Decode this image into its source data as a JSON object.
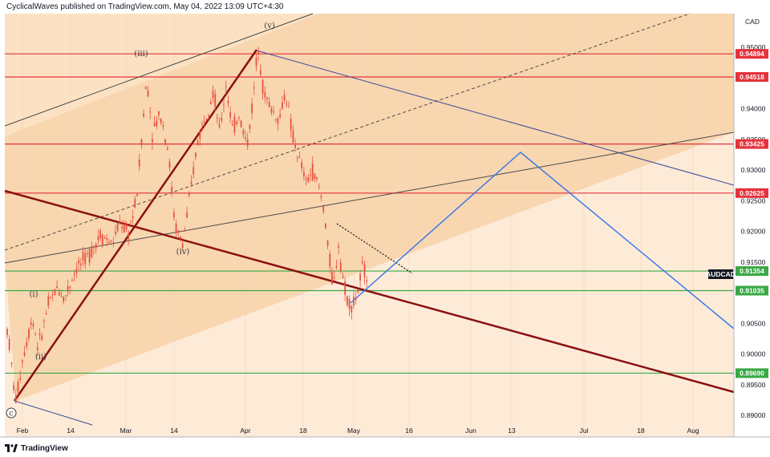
{
  "header": {
    "publisher_line": "CyclicalWaves published on TradingView.com, May 04, 2022 13:09 UTC+4:30"
  },
  "footer": {
    "brand": "TradingView",
    "logo_icon": "tradingview-logo-icon"
  },
  "chart_data": {
    "type": "candlestick",
    "symbol": "AUDCAD",
    "currency": "CAD",
    "colors": {
      "background_shaded": "#fce2c2",
      "background_light": "#fdebd8",
      "candle": "#e8523f",
      "resistance_line": "#e5323b",
      "support_line": "#3aa845",
      "trend_dark_red": "#8b1111",
      "projection_blue": "#3d7be6",
      "channel_dark": "#4a4a4a",
      "symbol_tag": "#131722"
    },
    "y_axis": {
      "range": [
        0.8865,
        0.9555
      ],
      "ticks": [
        "0.95000",
        "0.94500",
        "0.94000",
        "0.93500",
        "0.93000",
        "0.92500",
        "0.92000",
        "0.91500",
        "0.91000",
        "0.90500",
        "0.90000",
        "0.89500",
        "0.89000"
      ]
    },
    "x_axis": {
      "ticks": [
        "Feb",
        "14",
        "Mar",
        "14",
        "Apr",
        "18",
        "May",
        "16",
        "Jun",
        "13",
        "Jul",
        "18",
        "Aug"
      ]
    },
    "horizontal_levels": [
      {
        "value": 0.94894,
        "label": "0.94894",
        "kind": "resistance"
      },
      {
        "value": 0.94518,
        "label": "0.94518",
        "kind": "resistance"
      },
      {
        "value": 0.93425,
        "label": "0.93425",
        "kind": "resistance"
      },
      {
        "value": 0.92625,
        "label": "0.92625",
        "kind": "resistance"
      },
      {
        "value": 0.91354,
        "label": "0.91354",
        "kind": "support"
      },
      {
        "value": 0.91035,
        "label": "0.91035",
        "kind": "support"
      },
      {
        "value": 0.8969,
        "label": "0.89690",
        "kind": "support"
      }
    ],
    "current_price_tag": "AUDCAD",
    "wave_labels": [
      "(iii)",
      "(v)",
      "(i)",
      "(ii)",
      "(iv)",
      "c"
    ]
  }
}
